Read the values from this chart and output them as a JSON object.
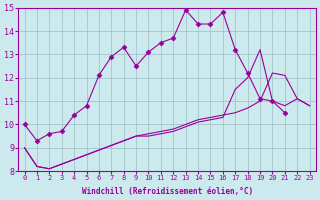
{
  "xlabel": "Windchill (Refroidissement éolien,°C)",
  "xlim": [
    -0.5,
    23.5
  ],
  "ylim": [
    8,
    15
  ],
  "yticks": [
    8,
    9,
    10,
    11,
    12,
    13,
    14,
    15
  ],
  "xticks": [
    0,
    1,
    2,
    3,
    4,
    5,
    6,
    7,
    8,
    9,
    10,
    11,
    12,
    13,
    14,
    15,
    16,
    17,
    18,
    19,
    20,
    21,
    22,
    23
  ],
  "background_color": "#cce9ee",
  "line_color": "#990099",
  "series1_x": [
    0,
    1,
    2,
    3,
    4,
    5,
    6,
    7,
    8,
    9,
    10,
    11,
    12,
    13,
    14,
    15,
    16,
    17,
    18,
    19,
    20,
    21
  ],
  "series1_y": [
    10.0,
    9.3,
    9.6,
    9.7,
    10.4,
    10.8,
    12.1,
    12.9,
    13.3,
    12.5,
    13.1,
    13.5,
    13.7,
    14.9,
    14.3,
    14.3,
    14.8,
    13.2,
    12.2,
    11.1,
    11.0,
    10.5
  ],
  "series2_x": [
    0,
    1,
    2,
    3,
    4,
    5,
    6,
    7,
    8,
    9,
    10,
    11,
    12,
    13,
    14,
    15,
    16,
    17,
    18,
    19,
    20,
    21,
    22,
    23
  ],
  "series2_y": [
    9.0,
    8.2,
    8.1,
    8.3,
    8.5,
    8.7,
    8.9,
    9.1,
    9.3,
    9.5,
    9.6,
    9.7,
    9.8,
    10.0,
    10.2,
    10.3,
    10.4,
    10.5,
    10.7,
    11.0,
    12.2,
    12.1,
    11.1,
    10.8
  ],
  "series3_x": [
    0,
    1,
    2,
    3,
    4,
    5,
    6,
    7,
    8,
    9,
    10,
    11,
    12,
    13,
    14,
    15,
    16,
    17,
    18,
    19,
    20,
    21,
    22,
    23
  ],
  "series3_y": [
    9.0,
    8.2,
    8.1,
    8.3,
    8.5,
    8.7,
    8.9,
    9.1,
    9.3,
    9.5,
    9.5,
    9.6,
    9.7,
    9.9,
    10.1,
    10.2,
    10.3,
    11.5,
    12.0,
    13.2,
    11.0,
    10.8,
    11.1,
    10.8
  ]
}
